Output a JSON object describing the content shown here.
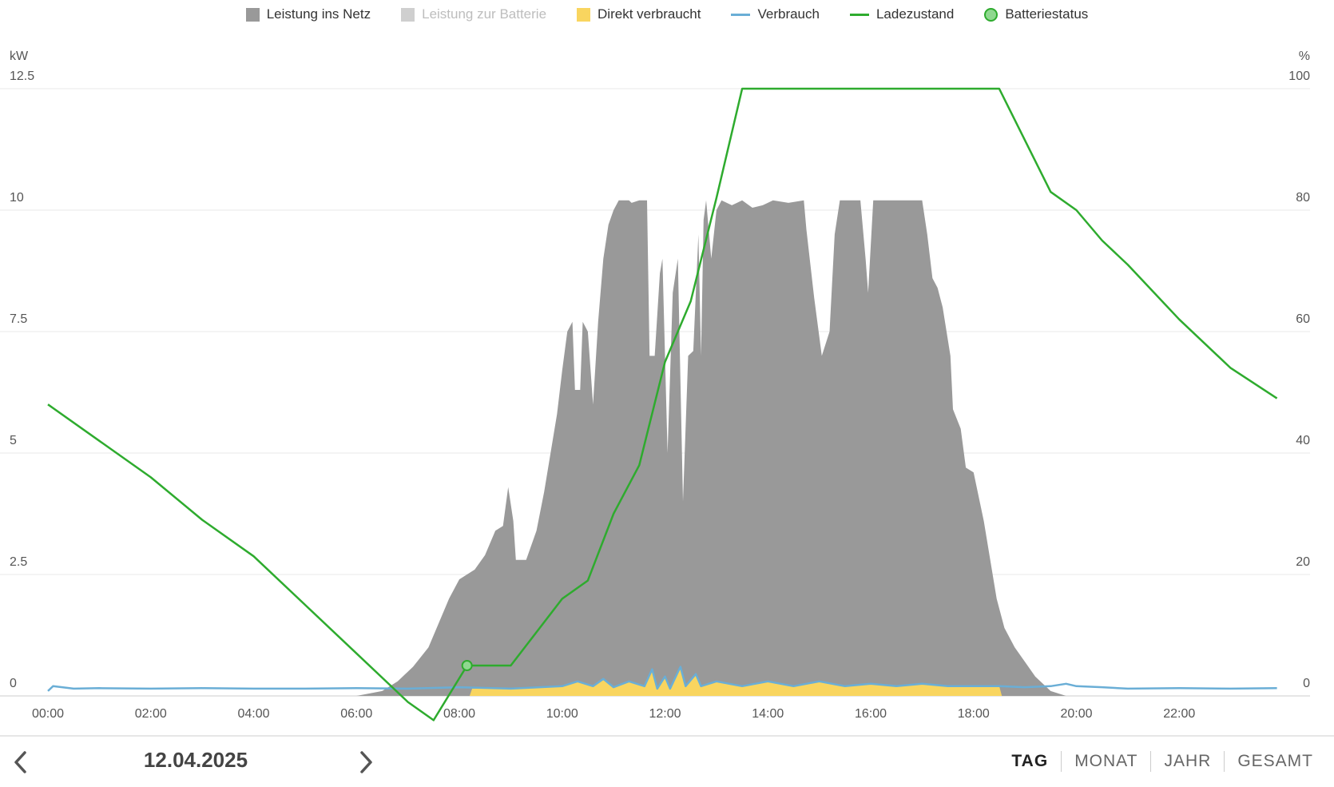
{
  "legend": [
    {
      "label": "Leistung ins Netz",
      "kind": "box",
      "color": "#999999",
      "enabled": true
    },
    {
      "label": "Leistung zur Batterie",
      "kind": "box",
      "color": "#cfcfcf",
      "enabled": false
    },
    {
      "label": "Direkt verbraucht",
      "kind": "box",
      "color": "#f9d55f",
      "enabled": true
    },
    {
      "label": "Verbrauch",
      "kind": "line",
      "color": "#6aaed6",
      "enabled": true
    },
    {
      "label": "Ladezustand",
      "kind": "line",
      "color": "#2eab2e",
      "enabled": true
    },
    {
      "label": "Batteriestatus",
      "kind": "dot",
      "color": "#8fd88f",
      "enabled": true
    }
  ],
  "chart_data": {
    "type": "area",
    "x_unit": "hours",
    "xlim": [
      0,
      24
    ],
    "x_ticks": [
      "00:00",
      "02:00",
      "04:00",
      "06:00",
      "08:00",
      "10:00",
      "12:00",
      "14:00",
      "16:00",
      "18:00",
      "20:00",
      "22:00"
    ],
    "y_left": {
      "label": "kW",
      "ylim": [
        0,
        12.5
      ],
      "ticks": [
        "0",
        "2.5",
        "5",
        "7.5",
        "10",
        "12.5"
      ]
    },
    "y_right": {
      "label": "%",
      "ylim": [
        0,
        100
      ],
      "ticks": [
        "0",
        "20",
        "40",
        "60",
        "80",
        "100"
      ]
    },
    "grid": true,
    "legend_position": "top",
    "series": [
      {
        "name": "Leistung ins Netz",
        "kind": "area",
        "axis": "left",
        "color": "#999999",
        "points": [
          [
            6.0,
            0
          ],
          [
            6.5,
            0.1
          ],
          [
            6.8,
            0.3
          ],
          [
            7.1,
            0.6
          ],
          [
            7.4,
            1.0
          ],
          [
            7.6,
            1.5
          ],
          [
            7.8,
            2.0
          ],
          [
            8.0,
            2.4
          ],
          [
            8.3,
            2.6
          ],
          [
            8.5,
            2.9
          ],
          [
            8.7,
            3.4
          ],
          [
            8.85,
            3.5
          ],
          [
            8.95,
            4.3
          ],
          [
            9.05,
            3.6
          ],
          [
            9.1,
            2.8
          ],
          [
            9.3,
            2.8
          ],
          [
            9.5,
            3.4
          ],
          [
            9.65,
            4.2
          ],
          [
            9.9,
            5.8
          ],
          [
            10.0,
            6.7
          ],
          [
            10.1,
            7.5
          ],
          [
            10.2,
            7.7
          ],
          [
            10.25,
            6.3
          ],
          [
            10.35,
            6.3
          ],
          [
            10.4,
            7.7
          ],
          [
            10.5,
            7.5
          ],
          [
            10.6,
            6.0
          ],
          [
            10.7,
            7.7
          ],
          [
            10.8,
            9.0
          ],
          [
            10.9,
            9.7
          ],
          [
            11.0,
            10.0
          ],
          [
            11.1,
            10.2
          ],
          [
            11.3,
            10.2
          ],
          [
            11.35,
            10.15
          ],
          [
            11.5,
            10.2
          ],
          [
            11.65,
            10.2
          ],
          [
            11.7,
            7.0
          ],
          [
            11.8,
            7.0
          ],
          [
            11.9,
            8.7
          ],
          [
            11.95,
            9.0
          ],
          [
            12.0,
            7.0
          ],
          [
            12.05,
            5.0
          ],
          [
            12.15,
            8.3
          ],
          [
            12.25,
            9.0
          ],
          [
            12.35,
            4.0
          ],
          [
            12.45,
            7.0
          ],
          [
            12.55,
            7.1
          ],
          [
            12.65,
            9.5
          ],
          [
            12.7,
            7.0
          ],
          [
            12.75,
            9.8
          ],
          [
            12.8,
            10.2
          ],
          [
            12.9,
            9.0
          ],
          [
            13.0,
            10.0
          ],
          [
            13.1,
            10.2
          ],
          [
            13.3,
            10.1
          ],
          [
            13.5,
            10.2
          ],
          [
            13.7,
            10.05
          ],
          [
            13.9,
            10.1
          ],
          [
            14.1,
            10.2
          ],
          [
            14.4,
            10.15
          ],
          [
            14.7,
            10.2
          ],
          [
            14.75,
            9.6
          ],
          [
            14.9,
            8.2
          ],
          [
            15.05,
            7.0
          ],
          [
            15.2,
            7.5
          ],
          [
            15.3,
            9.5
          ],
          [
            15.4,
            10.2
          ],
          [
            15.6,
            10.2
          ],
          [
            15.8,
            10.2
          ],
          [
            15.9,
            9.0
          ],
          [
            15.95,
            8.3
          ],
          [
            16.05,
            10.2
          ],
          [
            16.4,
            10.2
          ],
          [
            16.8,
            10.2
          ],
          [
            17.0,
            10.2
          ],
          [
            17.1,
            9.5
          ],
          [
            17.2,
            8.6
          ],
          [
            17.3,
            8.4
          ],
          [
            17.4,
            8.0
          ],
          [
            17.55,
            7.0
          ],
          [
            17.6,
            5.9
          ],
          [
            17.75,
            5.5
          ],
          [
            17.85,
            4.7
          ],
          [
            18.0,
            4.6
          ],
          [
            18.2,
            3.6
          ],
          [
            18.45,
            2.0
          ],
          [
            18.6,
            1.4
          ],
          [
            18.8,
            1.0
          ],
          [
            19.0,
            0.7
          ],
          [
            19.2,
            0.4
          ],
          [
            19.5,
            0.1
          ],
          [
            19.8,
            0
          ]
        ]
      },
      {
        "name": "Direkt verbraucht",
        "kind": "area",
        "axis": "left",
        "color": "#f9d55f",
        "points": [
          [
            8.2,
            0
          ],
          [
            8.25,
            0.15
          ],
          [
            9.0,
            0.15
          ],
          [
            10.0,
            0.2
          ],
          [
            10.3,
            0.3
          ],
          [
            10.6,
            0.2
          ],
          [
            10.8,
            0.35
          ],
          [
            11.0,
            0.18
          ],
          [
            11.3,
            0.3
          ],
          [
            11.6,
            0.2
          ],
          [
            11.75,
            0.55
          ],
          [
            11.85,
            0.15
          ],
          [
            12.0,
            0.4
          ],
          [
            12.1,
            0.15
          ],
          [
            12.3,
            0.6
          ],
          [
            12.4,
            0.2
          ],
          [
            12.6,
            0.45
          ],
          [
            12.7,
            0.2
          ],
          [
            13.0,
            0.3
          ],
          [
            13.5,
            0.2
          ],
          [
            14.0,
            0.3
          ],
          [
            14.5,
            0.2
          ],
          [
            15.0,
            0.3
          ],
          [
            15.5,
            0.2
          ],
          [
            16.0,
            0.25
          ],
          [
            16.5,
            0.2
          ],
          [
            17.0,
            0.25
          ],
          [
            17.5,
            0.2
          ],
          [
            18.0,
            0.2
          ],
          [
            18.5,
            0.2
          ],
          [
            18.55,
            0
          ]
        ]
      },
      {
        "name": "Verbrauch",
        "kind": "line",
        "axis": "left",
        "color": "#6aaed6",
        "points": [
          [
            0,
            0.1
          ],
          [
            0.1,
            0.2
          ],
          [
            0.5,
            0.15
          ],
          [
            1.0,
            0.16
          ],
          [
            2.0,
            0.15
          ],
          [
            3.0,
            0.16
          ],
          [
            4.0,
            0.15
          ],
          [
            5.0,
            0.15
          ],
          [
            6.0,
            0.16
          ],
          [
            7.0,
            0.15
          ],
          [
            8.0,
            0.18
          ],
          [
            9.0,
            0.15
          ],
          [
            10.0,
            0.2
          ],
          [
            10.3,
            0.3
          ],
          [
            10.6,
            0.2
          ],
          [
            10.8,
            0.35
          ],
          [
            11.0,
            0.18
          ],
          [
            11.3,
            0.3
          ],
          [
            11.6,
            0.2
          ],
          [
            11.75,
            0.55
          ],
          [
            11.85,
            0.15
          ],
          [
            12.0,
            0.4
          ],
          [
            12.1,
            0.15
          ],
          [
            12.3,
            0.6
          ],
          [
            12.4,
            0.2
          ],
          [
            12.6,
            0.45
          ],
          [
            12.7,
            0.2
          ],
          [
            13.0,
            0.3
          ],
          [
            13.5,
            0.2
          ],
          [
            14.0,
            0.3
          ],
          [
            14.5,
            0.2
          ],
          [
            15.0,
            0.3
          ],
          [
            15.5,
            0.2
          ],
          [
            16.0,
            0.25
          ],
          [
            16.5,
            0.2
          ],
          [
            17.0,
            0.25
          ],
          [
            17.5,
            0.2
          ],
          [
            18.0,
            0.2
          ],
          [
            18.5,
            0.2
          ],
          [
            19.0,
            0.18
          ],
          [
            19.5,
            0.2
          ],
          [
            19.8,
            0.25
          ],
          [
            20.0,
            0.2
          ],
          [
            20.5,
            0.18
          ],
          [
            21.0,
            0.15
          ],
          [
            22.0,
            0.16
          ],
          [
            23.0,
            0.15
          ],
          [
            23.9,
            0.16
          ]
        ]
      },
      {
        "name": "Ladezustand",
        "kind": "line",
        "axis": "right",
        "color": "#2eab2e",
        "points": [
          [
            0,
            48
          ],
          [
            1,
            42
          ],
          [
            2,
            36
          ],
          [
            3,
            29
          ],
          [
            4,
            23
          ],
          [
            5,
            15
          ],
          [
            6,
            7
          ],
          [
            7,
            -1
          ],
          [
            7.5,
            -4
          ],
          [
            8.15,
            5
          ],
          [
            9.0,
            5
          ],
          [
            10.0,
            16
          ],
          [
            10.5,
            19
          ],
          [
            11.0,
            30
          ],
          [
            11.5,
            38
          ],
          [
            12.0,
            55
          ],
          [
            12.5,
            65
          ],
          [
            13.0,
            82
          ],
          [
            13.5,
            100
          ],
          [
            18.5,
            100
          ],
          [
            19.5,
            83
          ],
          [
            20.0,
            80
          ],
          [
            20.5,
            75
          ],
          [
            21.0,
            71
          ],
          [
            22.0,
            62
          ],
          [
            23.0,
            54
          ],
          [
            23.9,
            49
          ]
        ]
      },
      {
        "name": "Batteriestatus",
        "kind": "marker",
        "axis": "right",
        "color": "#8fd88f",
        "points": [
          [
            8.15,
            5
          ]
        ]
      }
    ]
  },
  "footer": {
    "prev_icon": "chevron-left-icon",
    "next_icon": "chevron-right-icon",
    "date": "12.04.2025",
    "tabs": [
      {
        "label": "TAG",
        "active": true
      },
      {
        "label": "MONAT",
        "active": false
      },
      {
        "label": "JAHR",
        "active": false
      },
      {
        "label": "GESAMT",
        "active": false
      }
    ]
  }
}
